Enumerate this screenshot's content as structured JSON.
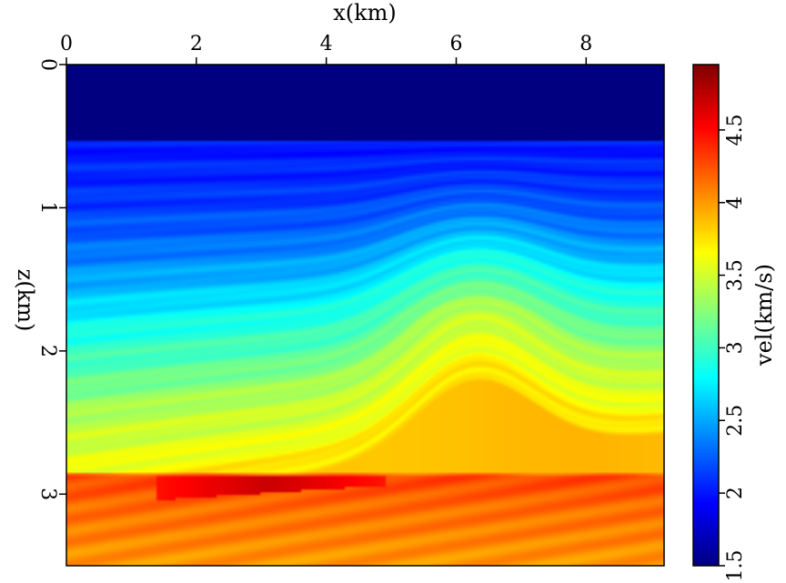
{
  "chart_data": {
    "type": "heatmap",
    "title": "",
    "xlabel": "x(km)",
    "ylabel": "z(km)",
    "colorbar_label": "vel(km/s)",
    "xlim": [
      0,
      9.2
    ],
    "ylim": [
      0,
      3.5
    ],
    "y_inverted": true,
    "x_axis_position": "top",
    "x_ticks": [
      0,
      2,
      4,
      6,
      8
    ],
    "x_tick_labels": [
      "0",
      "2",
      "4",
      "6",
      "8"
    ],
    "y_ticks": [
      0,
      1,
      2,
      3
    ],
    "y_tick_labels": [
      "0",
      "1",
      "2",
      "3"
    ],
    "colorbar_range": [
      1.5,
      4.95
    ],
    "colorbar_ticks": [
      1.5,
      2,
      2.5,
      3,
      3.5,
      4,
      4.5
    ],
    "colorbar_tick_labels": [
      "1.5",
      "2",
      "2.5",
      "3",
      "3.5",
      "4",
      "4.5"
    ],
    "colormap": "jet",
    "velocity_profile": {
      "description_units": "z in km, velocity in km/s",
      "water_depth": 0.53,
      "water_velocity": 1.5,
      "z": [
        0.53,
        0.9,
        1.2,
        1.5,
        1.75,
        2.0,
        2.25,
        2.5,
        2.75,
        2.85,
        2.87,
        3.1,
        3.5
      ],
      "vel": [
        2.0,
        2.1,
        2.3,
        2.6,
        2.9,
        3.1,
        3.4,
        3.55,
        3.75,
        3.85,
        4.3,
        4.15,
        4.0
      ]
    },
    "structures": {
      "salt_top_z": 2.85,
      "high_velocity_lens": {
        "x": [
          1.4,
          4.9
        ],
        "z": [
          2.88,
          3.05
        ],
        "vel": 4.7
      },
      "anticline_crest_x": 6.3
    }
  },
  "colors": {
    "axis": "#000000",
    "background": "#ffffff"
  }
}
